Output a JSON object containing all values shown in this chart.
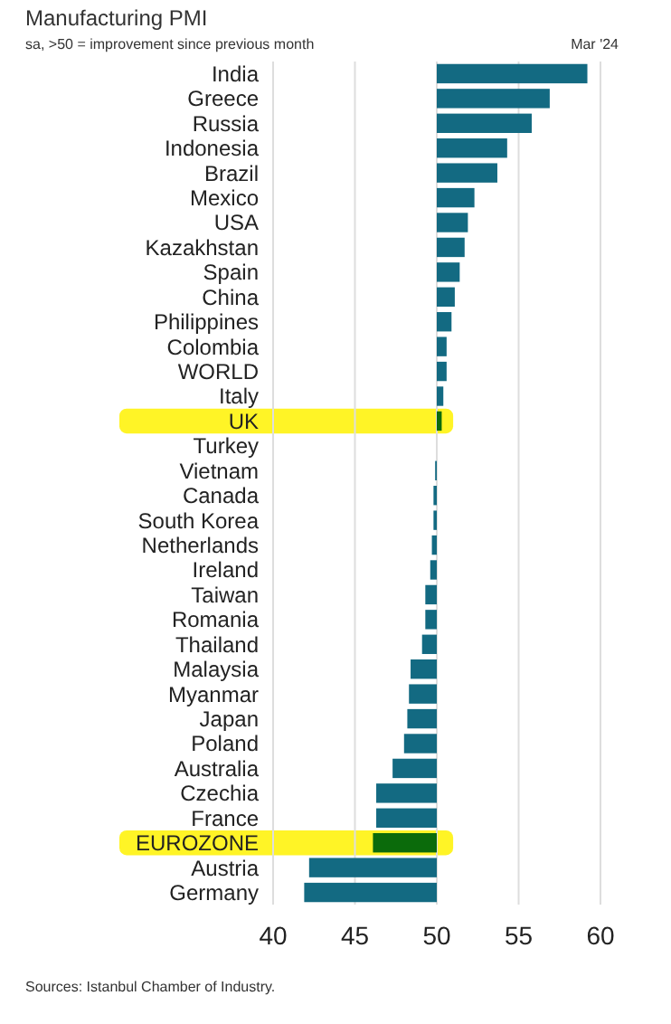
{
  "chart_data": {
    "type": "bar",
    "orientation": "horizontal",
    "title": "Manufacturing PMI",
    "subtitle": "sa, >50 = improvement since previous month",
    "annotations": [
      "Mar '24",
      "Sources: Istanbul Chamber of Industry."
    ],
    "categories": [
      "India",
      "Greece",
      "Russia",
      "Indonesia",
      "Brazil",
      "Mexico",
      "USA",
      "Kazakhstan",
      "Spain",
      "China",
      "Philippines",
      "Colombia",
      "WORLD",
      "Italy",
      "UK",
      "Turkey",
      "Vietnam",
      "Canada",
      "South Korea",
      "Netherlands",
      "Ireland",
      "Taiwan",
      "Romania",
      "Thailand",
      "Malaysia",
      "Myanmar",
      "Japan",
      "Poland",
      "Australia",
      "Czechia",
      "France",
      "EUROZONE",
      "Austria",
      "Germany"
    ],
    "base": [
      50,
      50,
      50,
      50,
      50,
      50,
      50,
      50,
      50,
      50,
      50,
      50,
      50,
      50,
      50,
      null,
      50,
      50,
      50,
      50,
      50,
      50,
      50,
      50,
      50,
      50,
      50,
      50,
      50,
      50,
      50,
      50,
      50,
      50
    ],
    "values": [
      9.2,
      6.9,
      5.8,
      4.3,
      3.7,
      2.3,
      1.9,
      1.7,
      1.4,
      1.1,
      0.9,
      0.6,
      0.6,
      0.4,
      0.3,
      null,
      -0.1,
      -0.2,
      -0.2,
      -0.3,
      -0.4,
      -0.7,
      -0.7,
      -0.9,
      -1.6,
      -1.7,
      -1.8,
      -2.0,
      -2.7,
      -3.7,
      -3.7,
      -3.9,
      -7.8,
      -8.1
    ],
    "colors": [
      "#136a82",
      "#136a82",
      "#136a82",
      "#136a82",
      "#136a82",
      "#136a82",
      "#136a82",
      "#136a82",
      "#136a82",
      "#136a82",
      "#136a82",
      "#136a82",
      "#136a82",
      "#136a82",
      "#0b6b0b",
      null,
      "#136a82",
      "#136a82",
      "#136a82",
      "#136a82",
      "#136a82",
      "#136a82",
      "#136a82",
      "#136a82",
      "#136a82",
      "#136a82",
      "#136a82",
      "#136a82",
      "#136a82",
      "#136a82",
      "#136a82",
      "#0b6b0b",
      "#136a82",
      "#136a82"
    ],
    "bands": [
      {
        "axis": "y",
        "from": "UK",
        "to": "UK",
        "color": "#fff200"
      },
      {
        "axis": "y",
        "from": "EUROZONE",
        "to": "EUROZONE",
        "color": "#fff200"
      }
    ],
    "xlim": [
      40,
      60
    ],
    "xticks": [
      40,
      45,
      50,
      55,
      60
    ],
    "grid": "x"
  }
}
